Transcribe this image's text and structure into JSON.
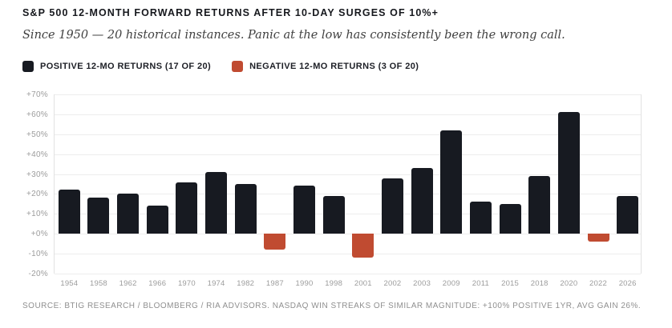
{
  "header": {
    "title": "S&P 500 12-MONTH FORWARD RETURNS AFTER 10-DAY SURGES OF 10%+",
    "subtitle": "Since 1950 — 20 historical instances. Panic at the low has consistently been the wrong call."
  },
  "legend": {
    "positive": {
      "label": "POSITIVE 12-MO RETURNS (17 OF 20)",
      "color": "#171a21"
    },
    "negative": {
      "label": "NEGATIVE 12-MO RETURNS (3 OF 20)",
      "color": "#c04b31"
    }
  },
  "chart_data": {
    "type": "bar",
    "title": "S&P 500 12-MONTH FORWARD RETURNS AFTER 10-DAY SURGES OF 10%+",
    "categories": [
      "1954",
      "1958",
      "1962",
      "1966",
      "1970",
      "1974",
      "1982",
      "1987",
      "1990",
      "1998",
      "2001",
      "2002",
      "2003",
      "2009",
      "2011",
      "2015",
      "2018",
      "2020",
      "2022",
      "2026"
    ],
    "values": [
      22,
      18,
      20,
      14,
      26,
      31,
      25,
      -8,
      24,
      19,
      -12,
      28,
      33,
      52,
      16,
      15,
      29,
      61,
      -4,
      19
    ],
    "positive_color": "#171a21",
    "negative_color": "#c04b31",
    "xlabel": "",
    "ylabel": "",
    "ylim": [
      -20,
      70
    ],
    "yticks": [
      {
        "v": 70,
        "label": "+70%"
      },
      {
        "v": 60,
        "label": "+60%"
      },
      {
        "v": 50,
        "label": "+50%"
      },
      {
        "v": 40,
        "label": "+40%"
      },
      {
        "v": 30,
        "label": "+30%"
      },
      {
        "v": 20,
        "label": "+20%"
      },
      {
        "v": 10,
        "label": "+10%"
      },
      {
        "v": 0,
        "label": "+0%"
      },
      {
        "v": -10,
        "label": "-10%"
      },
      {
        "v": -20,
        "label": "-20%"
      }
    ],
    "grid": true,
    "legend_position": "top-left"
  },
  "footer": {
    "source": "SOURCE: BTIG RESEARCH / BLOOMBERG / RIA ADVISORS. NASDAQ WIN STREAKS OF SIMILAR MAGNITUDE: +100% POSITIVE 1YR, AVG GAIN 26%."
  },
  "colors": {
    "background": "#ffffff",
    "title": "#16181d",
    "subtitle": "#414141",
    "gridline": "#ececec",
    "axis_border": "#e2e2e2",
    "tick_label": "#9c9c9c",
    "source_text": "#8f8f8f"
  }
}
